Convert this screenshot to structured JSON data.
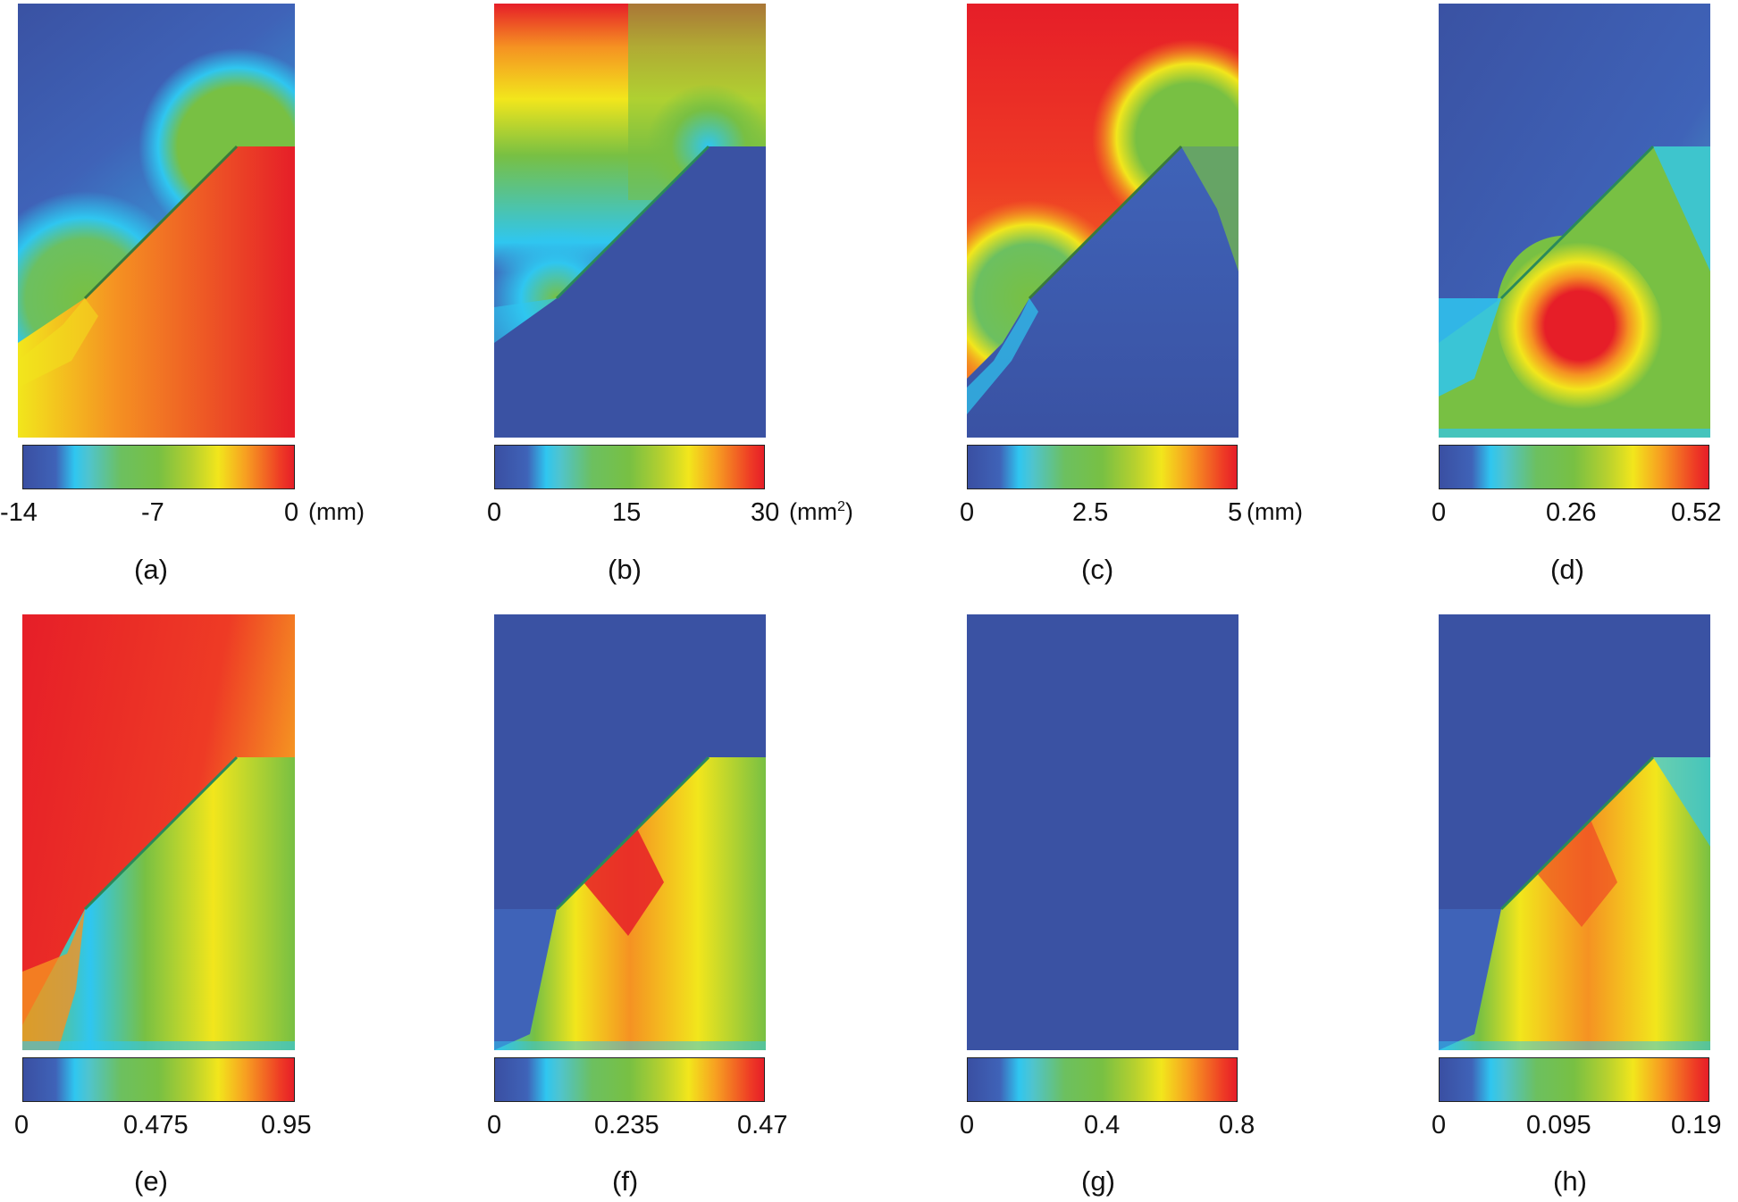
{
  "panels": [
    {
      "id": "a",
      "caption": "(a)",
      "ticks": [
        "-14",
        "-7",
        "0"
      ],
      "unit": "(mm)",
      "unit_sup": ""
    },
    {
      "id": "b",
      "caption": "(b)",
      "ticks": [
        "0",
        "15",
        "30"
      ],
      "unit": "(mm",
      "unit_sup": "2"
    },
    {
      "id": "c",
      "caption": "(c)",
      "ticks": [
        "0",
        "2.5",
        "5"
      ],
      "unit": "(mm)",
      "unit_sup": ""
    },
    {
      "id": "d",
      "caption": "(d)",
      "ticks": [
        "0",
        "0.26",
        "0.52"
      ],
      "unit": "",
      "unit_sup": ""
    },
    {
      "id": "e",
      "caption": "(e)",
      "ticks": [
        "0",
        "0.475",
        "0.95"
      ],
      "unit": "",
      "unit_sup": ""
    },
    {
      "id": "f",
      "caption": "(f)",
      "ticks": [
        "0",
        "0.235",
        "0.47"
      ],
      "unit": "",
      "unit_sup": ""
    },
    {
      "id": "g",
      "caption": "(g)",
      "ticks": [
        "0",
        "0.4",
        "0.8"
      ],
      "unit": "",
      "unit_sup": ""
    },
    {
      "id": "h",
      "caption": "(h)",
      "ticks": [
        "0",
        "0.095",
        "0.19"
      ],
      "unit": "",
      "unit_sup": ""
    }
  ],
  "colors": {
    "dark_blue": "#3a52a3",
    "cyan": "#2fc6f0",
    "green": "#78c043",
    "yellow": "#f2e61c",
    "orange": "#f59222",
    "red": "#e61e28"
  }
}
